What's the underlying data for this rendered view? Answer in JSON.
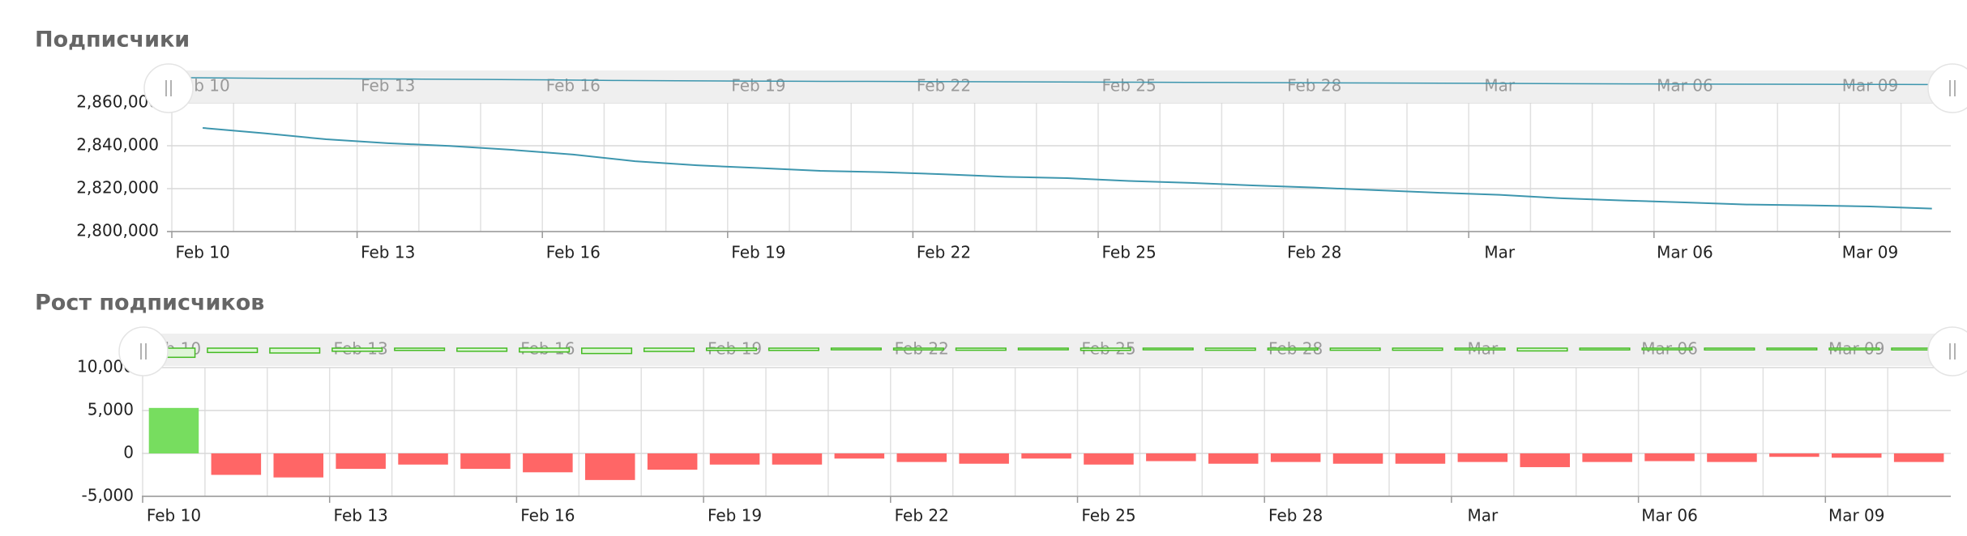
{
  "chart_data": [
    {
      "type": "line",
      "title": "Подписчики",
      "categories": [
        "Feb 10",
        null,
        null,
        "Feb 13",
        null,
        null,
        "Feb 16",
        null,
        null,
        "Feb 19",
        null,
        null,
        "Feb 22",
        null,
        null,
        "Feb 25",
        null,
        null,
        "Feb 28",
        null,
        null,
        "Mar",
        null,
        null,
        "Mar 06",
        null,
        null,
        "Mar 09",
        null
      ],
      "values": [
        2848300,
        2845800,
        2843000,
        2841200,
        2839900,
        2838100,
        2835900,
        2832800,
        2830900,
        2829600,
        2828300,
        2827700,
        2826700,
        2825500,
        2824900,
        2823600,
        2822700,
        2821500,
        2820500,
        2819300,
        2818100,
        2817100,
        2815500,
        2814500,
        2813600,
        2812600,
        2812200,
        2811700,
        2810700
      ],
      "color": "#3d96ae",
      "ylim": [
        2800000,
        2860000
      ],
      "yticks": [
        {
          "value": 2800000,
          "label": "2,800,000"
        },
        {
          "value": 2820000,
          "label": "2,820,000"
        },
        {
          "value": 2840000,
          "label": "2,840,000"
        },
        {
          "value": 2860000,
          "label": "2,860,000"
        }
      ],
      "grid": true
    },
    {
      "type": "bar",
      "title": "Рост подписчиков",
      "categories": [
        "Feb 10",
        null,
        null,
        "Feb 13",
        null,
        null,
        "Feb 16",
        null,
        null,
        "Feb 19",
        null,
        null,
        "Feb 22",
        null,
        null,
        "Feb 25",
        null,
        null,
        "Feb 28",
        null,
        null,
        "Mar",
        null,
        null,
        "Mar 06",
        null,
        null,
        "Mar 09",
        null
      ],
      "values": [
        5300,
        -2500,
        -2800,
        -1800,
        -1300,
        -1800,
        -2200,
        -3100,
        -1900,
        -1300,
        -1300,
        -600,
        -1000,
        -1200,
        -600,
        -1300,
        -900,
        -1200,
        -1000,
        -1200,
        -1200,
        -1000,
        -1600,
        -1000,
        -900,
        -1000,
        -400,
        -500,
        -1000
      ],
      "color": "#77dd5f",
      "negative_color": "#ff6666",
      "ylim": [
        -5000,
        10000
      ],
      "yticks": [
        {
          "value": -5000,
          "label": "-5,000"
        },
        0,
        {
          "value": 5000,
          "label": "5,000"
        },
        {
          "value": 10000,
          "label": "10,000"
        }
      ],
      "grid": true
    }
  ]
}
